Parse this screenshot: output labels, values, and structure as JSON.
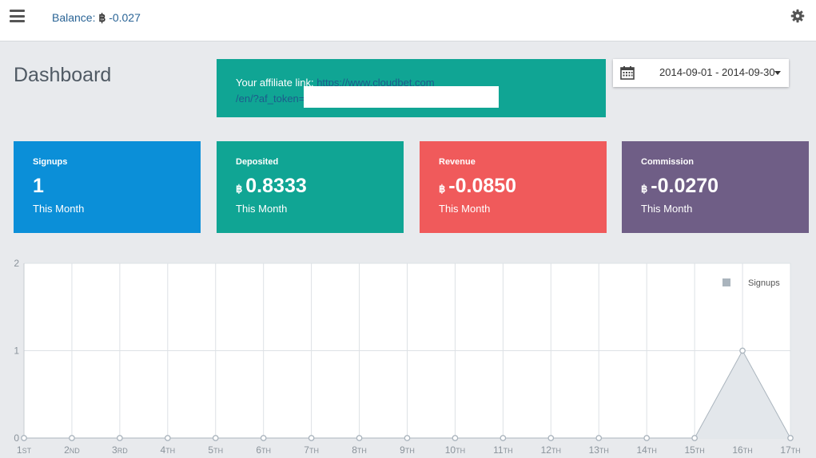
{
  "header": {
    "menu_icon": "hamburger-icon",
    "balance_label": "Balance:",
    "balance_currency": "฿",
    "balance_value": "-0.027",
    "settings_icon": "gear-icon"
  },
  "page": {
    "title": "Dashboard"
  },
  "affiliate": {
    "label": "Your affiliate link:",
    "link_line1": "https://www.cloudbet.com",
    "link_line2": "/en/?af_token="
  },
  "daterange": {
    "icon": "calendar-icon",
    "value": "2014-09-01 - 2014-09-30"
  },
  "stats": [
    {
      "label": "Signups",
      "currency": "",
      "value": "1",
      "sub": "This Month",
      "color": "#0b8fd8"
    },
    {
      "label": "Deposited",
      "currency": "฿",
      "value": "0.8333",
      "sub": "This Month",
      "color": "#10a594"
    },
    {
      "label": "Revenue",
      "currency": "฿",
      "value": "-0.0850",
      "sub": "This Month",
      "color": "#f05a5b"
    },
    {
      "label": "Commission",
      "currency": "฿",
      "value": "-0.0270",
      "sub": "This Month",
      "color": "#6f5e86"
    }
  ],
  "chart_data": {
    "type": "area",
    "categories": [
      {
        "n": "1",
        "s": "ST"
      },
      {
        "n": "2",
        "s": "ND"
      },
      {
        "n": "3",
        "s": "RD"
      },
      {
        "n": "4",
        "s": "TH"
      },
      {
        "n": "5",
        "s": "TH"
      },
      {
        "n": "6",
        "s": "TH"
      },
      {
        "n": "7",
        "s": "TH"
      },
      {
        "n": "8",
        "s": "TH"
      },
      {
        "n": "9",
        "s": "TH"
      },
      {
        "n": "10",
        "s": "TH"
      },
      {
        "n": "11",
        "s": "TH"
      },
      {
        "n": "12",
        "s": "TH"
      },
      {
        "n": "13",
        "s": "TH"
      },
      {
        "n": "14",
        "s": "TH"
      },
      {
        "n": "15",
        "s": "TH"
      },
      {
        "n": "16",
        "s": "TH"
      },
      {
        "n": "17",
        "s": "TH"
      }
    ],
    "series": [
      {
        "name": "Signups",
        "values": [
          0,
          0,
          0,
          0,
          0,
          0,
          0,
          0,
          0,
          0,
          0,
          0,
          0,
          0,
          0,
          1,
          0
        ]
      }
    ],
    "ylim": [
      0,
      2
    ],
    "yticks": [
      "0",
      "1",
      "2"
    ],
    "grid": true,
    "legend": "top-right",
    "line_color": "#aab4bd",
    "fill_color": "#e3e7eb"
  }
}
